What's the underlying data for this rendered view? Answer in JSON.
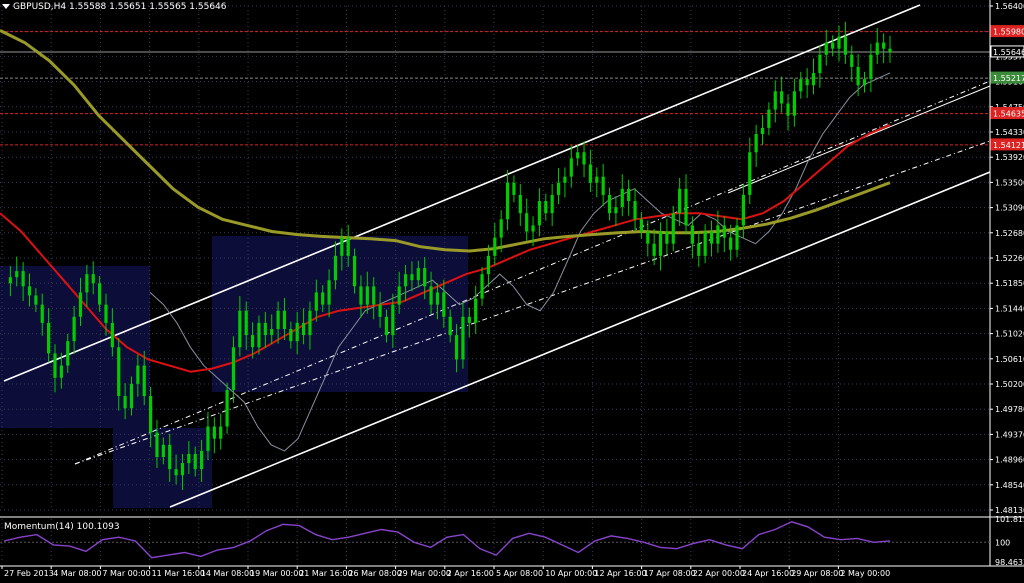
{
  "header": {
    "symbol_text": "GBPUSD,H4",
    "ohlc_text": "1.55588 1.55651 1.55565 1.55646"
  },
  "indicator": {
    "label": "Momentum(14) 100.1093",
    "axis_labels": [
      "101.8151",
      "100",
      "98.4633"
    ]
  },
  "colors": {
    "background": "#000000",
    "candle": "#00cc00",
    "grid": "#3a3a55",
    "box": "#0d0d3a",
    "ma_fast": "#8890a0",
    "ma_mid": "#dd1111",
    "ma_slow": "#9a9a28",
    "channel": "#ffffff",
    "level_red": "#dd2222",
    "momentum": "#8844cc"
  },
  "chart_data": {
    "type": "candlestick",
    "symbol": "GBPUSD",
    "timeframe": "H4",
    "price_ticks": [
      "1.56400",
      "1.55980",
      "1.55570",
      "1.55160",
      "1.54750",
      "1.54330",
      "1.53920",
      "1.53500",
      "1.53090",
      "1.52680",
      "1.52260",
      "1.51850",
      "1.51440",
      "1.51020",
      "1.50610",
      "1.50200",
      "1.49780",
      "1.49370",
      "1.48960",
      "1.48540",
      "1.48130"
    ],
    "ylim": [
      1.4813,
      1.564
    ],
    "time_labels": [
      "27 Feb 2013",
      "4 Mar 08:00",
      "7 Mar 00:00",
      "11 Mar 16:00",
      "14 Mar 08:00",
      "19 Mar 00:00",
      "21 Mar 16:00",
      "26 Mar 08:00",
      "29 Mar 00:00",
      "2 Apr 16:00",
      "5 Apr 08:00",
      "10 Apr 00:00",
      "12 Apr 16:00",
      "17 Apr 08:00",
      "22 Apr 00:00",
      "24 Apr 16:00",
      "29 Apr 08:00",
      "2 May 00:00"
    ],
    "price_markers": [
      {
        "label": "1.55980",
        "value": 1.5598,
        "color": "#dd2222"
      },
      {
        "label": "1.55646",
        "value": 1.55646,
        "color": "#ffffff"
      },
      {
        "label": "1.55217",
        "value": 1.55217,
        "color": "#3a8a3a"
      },
      {
        "label": "1.54635",
        "value": 1.54635,
        "color": "#dd2222"
      },
      {
        "label": "1.54121",
        "value": 1.54121,
        "color": "#dd2222"
      }
    ],
    "close_path": [
      1.5185,
      1.5195,
      1.5205,
      1.518,
      1.5165,
      1.515,
      1.512,
      1.507,
      1.503,
      1.505,
      1.509,
      1.513,
      1.517,
      1.52,
      1.5185,
      1.515,
      1.512,
      1.508,
      1.5,
      1.498,
      1.502,
      1.505,
      1.5,
      1.494,
      1.49,
      1.492,
      1.488,
      1.487,
      1.489,
      1.4905,
      1.488,
      1.491,
      1.495,
      1.493,
      1.495,
      1.501,
      1.508,
      1.514,
      1.51,
      1.508,
      1.512,
      1.51,
      1.511,
      1.514,
      1.511,
      1.509,
      1.512,
      1.51,
      1.514,
      1.517,
      1.515,
      1.519,
      1.523,
      1.526,
      1.523,
      1.518,
      1.515,
      1.518,
      1.515,
      1.513,
      1.51,
      1.515,
      1.518,
      1.52,
      1.519,
      1.521,
      1.518,
      1.515,
      1.517,
      1.513,
      1.51,
      1.506,
      1.513,
      1.512,
      1.516,
      1.52,
      1.523,
      1.526,
      1.529,
      1.535,
      1.533,
      1.53,
      1.527,
      1.528,
      1.532,
      1.53,
      1.533,
      1.535,
      1.536,
      1.539,
      1.54,
      1.538,
      1.535,
      1.536,
      1.533,
      1.53,
      1.531,
      1.534,
      1.532,
      1.529,
      1.527,
      1.525,
      1.523,
      1.527,
      1.525,
      1.53,
      1.534,
      1.528,
      1.525,
      1.523,
      1.527,
      1.525,
      1.528,
      1.526,
      1.524,
      1.528,
      1.533,
      1.54,
      1.543,
      1.544,
      1.547,
      1.55,
      1.548,
      1.546,
      1.55,
      1.552,
      1.551,
      1.553,
      1.556,
      1.558,
      1.557,
      1.559,
      1.556,
      1.554,
      1.551,
      1.552,
      1.556,
      1.558,
      1.557,
      1.55646
    ],
    "moving_averages": [
      {
        "name": "MA fast",
        "period_note": "",
        "values": [
          1.517,
          1.515,
          1.512,
          1.508,
          1.505,
          1.503,
          1.501,
          1.499,
          1.495,
          1.492,
          1.491,
          1.493,
          1.498,
          1.503,
          1.508,
          1.511,
          1.514,
          1.515,
          1.516,
          1.517,
          1.518,
          1.519,
          1.517,
          1.515,
          1.516,
          1.518,
          1.52,
          1.518,
          1.515,
          1.514,
          1.517,
          1.522,
          1.527,
          1.53,
          1.532,
          1.533,
          1.534,
          1.532,
          1.53,
          1.529,
          1.528,
          1.53,
          1.529,
          1.527,
          1.526,
          1.525,
          1.527,
          1.53,
          1.534,
          1.539,
          1.543,
          1.546,
          1.549,
          1.551,
          1.552,
          1.553
        ]
      },
      {
        "name": "MA mid",
        "values": [
          1.53,
          1.527,
          1.523,
          1.519,
          1.515,
          1.511,
          1.508,
          1.506,
          1.505,
          1.504,
          1.5045,
          1.5055,
          1.507,
          1.509,
          1.511,
          1.513,
          1.514,
          1.5145,
          1.515,
          1.5155,
          1.517,
          1.5185,
          1.52,
          1.521,
          1.5225,
          1.524,
          1.525,
          1.526,
          1.527,
          1.528,
          1.529,
          1.5295,
          1.53,
          1.53,
          1.5295,
          1.529,
          1.53,
          1.532,
          1.535,
          1.538,
          1.541,
          1.543,
          1.5445
        ]
      },
      {
        "name": "MA slow",
        "values": [
          1.56,
          1.558,
          1.555,
          1.551,
          1.546,
          1.542,
          1.538,
          1.534,
          1.531,
          1.529,
          1.528,
          1.527,
          1.5265,
          1.5262,
          1.526,
          1.5258,
          1.5255,
          1.5245,
          1.524,
          1.5238,
          1.5242,
          1.525,
          1.5258,
          1.5262,
          1.5265,
          1.5268,
          1.527,
          1.5268,
          1.5268,
          1.527,
          1.5275,
          1.5282,
          1.5292,
          1.5305,
          1.532,
          1.5335,
          1.535
        ]
      }
    ],
    "momentum_values": [
      100.1,
      100.4,
      100.6,
      99.8,
      99.7,
      99.3,
      100.2,
      100.4,
      100.1,
      98.8,
      99.0,
      99.2,
      98.9,
      99.4,
      99.6,
      100.1,
      100.9,
      101.4,
      101.3,
      100.6,
      100.2,
      100.4,
      100.7,
      101.0,
      100.8,
      100.0,
      99.6,
      100.4,
      100.6,
      99.5,
      99.0,
      100.3,
      100.7,
      100.4,
      99.8,
      99.2,
      100.1,
      100.5,
      100.3,
      100.0,
      99.6,
      99.5,
      99.9,
      100.2,
      99.8,
      99.5,
      100.6,
      101.0,
      101.6,
      101.2,
      100.4,
      100.2,
      100.3,
      100.0,
      100.1093
    ],
    "momentum_ylim": [
      98.4633,
      101.8151
    ]
  }
}
